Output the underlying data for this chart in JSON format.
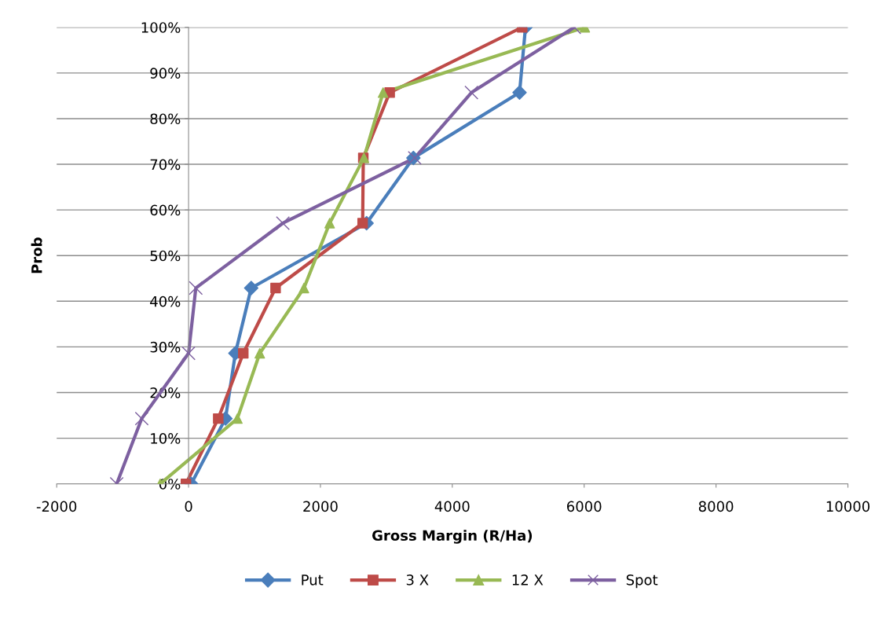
{
  "chart_data": {
    "type": "line",
    "xlabel": "Gross Margin (R/Ha)",
    "ylabel": "Prob",
    "xlim": [
      -2000,
      10000
    ],
    "xticks": [
      -2000,
      0,
      2000,
      4000,
      6000,
      8000,
      10000
    ],
    "ylim": [
      0,
      100
    ],
    "yticks": [
      {
        "value": 0,
        "label": "0%"
      },
      {
        "value": 10,
        "label": "10%"
      },
      {
        "value": 20,
        "label": "20%"
      },
      {
        "value": 30,
        "label": "30%"
      },
      {
        "value": 40,
        "label": "40%"
      },
      {
        "value": 50,
        "label": "50%"
      },
      {
        "value": 60,
        "label": "60%"
      },
      {
        "value": 70,
        "label": "70%"
      },
      {
        "value": 80,
        "label": "80%"
      },
      {
        "value": 90,
        "label": "90%"
      },
      {
        "value": 100,
        "label": "100%"
      }
    ],
    "grid": "y",
    "legend": "bottom",
    "line_style": "solid",
    "series": [
      {
        "name": "Put",
        "color": "#4a7ebb",
        "marker": "diamond",
        "x": [
          40,
          560,
          710,
          950,
          2700,
          3410,
          5020,
          5110
        ],
        "values": [
          0,
          14.3,
          28.6,
          42.9,
          57.1,
          71.4,
          85.7,
          100
        ]
      },
      {
        "name": "3 X",
        "color": "#be4b48",
        "marker": "square",
        "x": [
          -40,
          450,
          830,
          1320,
          2640,
          2650,
          3050,
          5060
        ],
        "values": [
          0,
          14.3,
          28.6,
          42.9,
          57.1,
          71.4,
          85.7,
          100
        ]
      },
      {
        "name": "12 X",
        "color": "#98b954",
        "marker": "triangle",
        "x": [
          -430,
          740,
          1080,
          1750,
          2140,
          2660,
          2950,
          6010
        ],
        "values": [
          0,
          14.3,
          28.6,
          42.9,
          57.1,
          71.4,
          85.7,
          100
        ]
      },
      {
        "name": "Spot",
        "color": "#7d60a0",
        "marker": "cross",
        "x": [
          -1090,
          -710,
          0,
          110,
          1430,
          3430,
          4290,
          5850
        ],
        "values": [
          0,
          14.3,
          28.6,
          42.9,
          57.1,
          71.4,
          85.7,
          100
        ]
      }
    ]
  }
}
